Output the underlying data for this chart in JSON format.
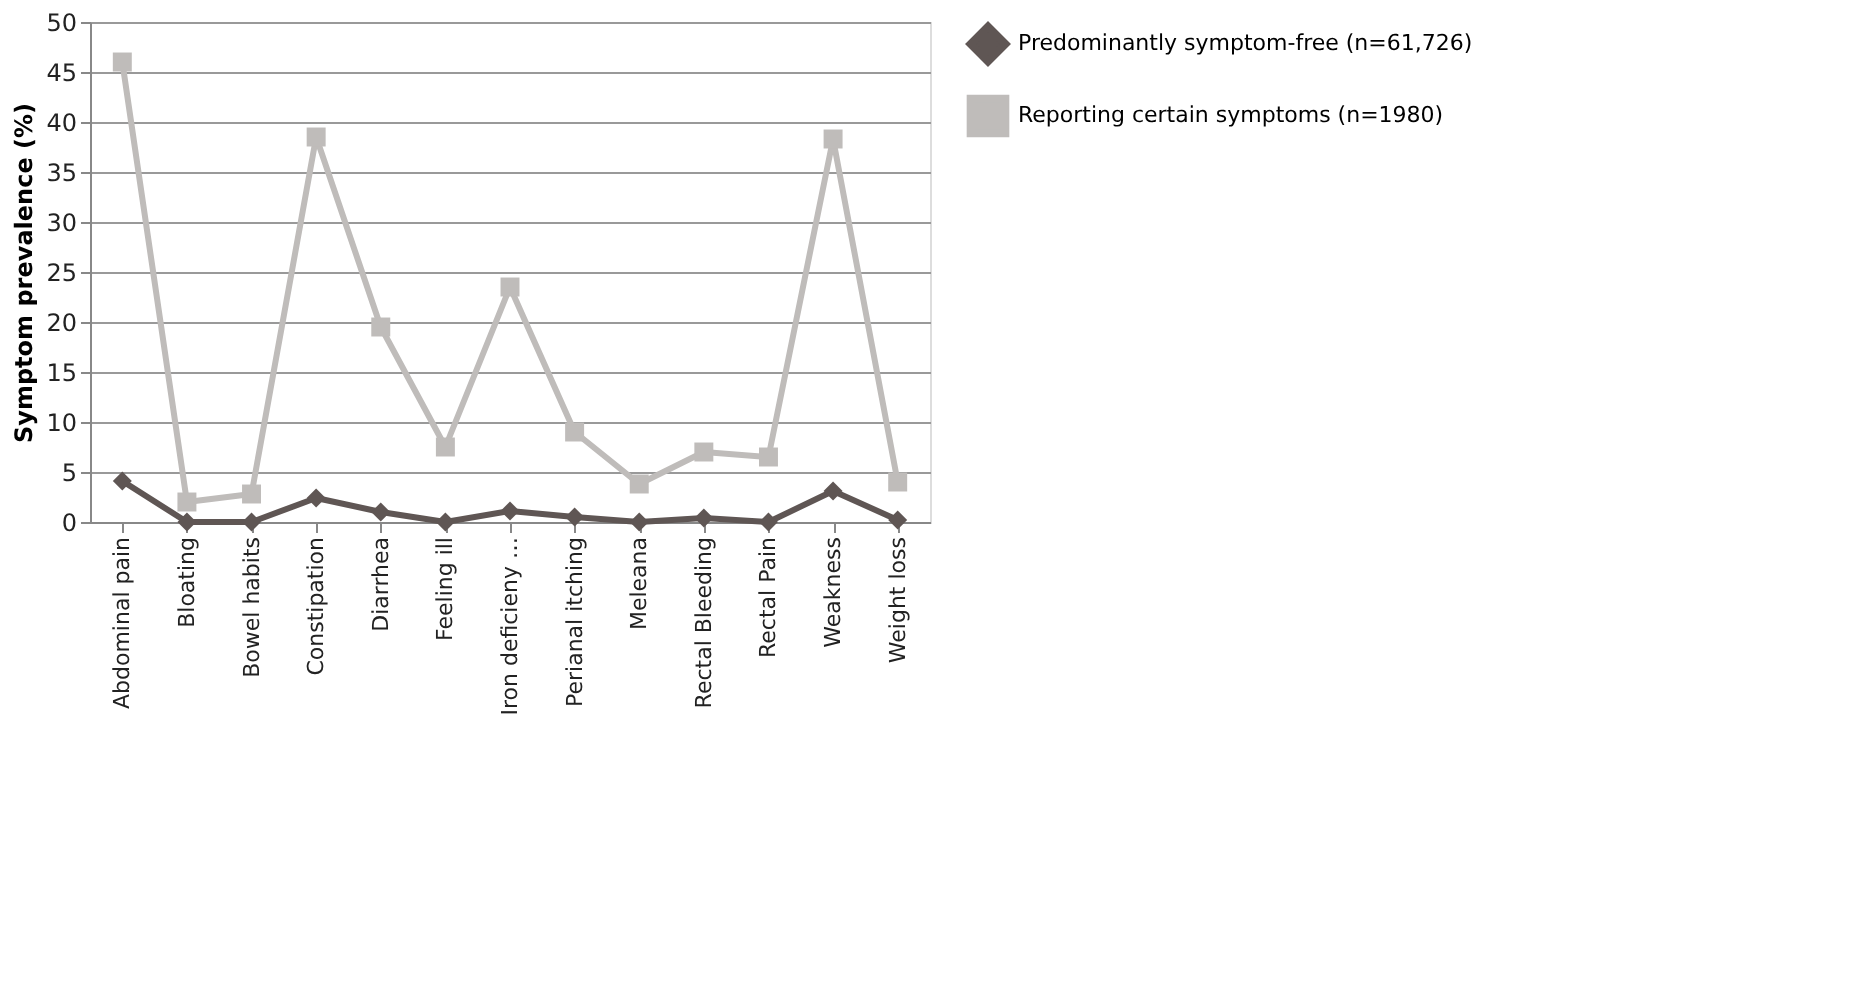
{
  "chart_data": {
    "type": "line",
    "ylabel": "Symptom prevalence (%)",
    "categories": [
      "Abdominal pain",
      "Bloating",
      "Bowel habits",
      "Constipation",
      "Diarrhea",
      "Feeling ill",
      "Iron deficieny …",
      "Perianal itching",
      "Meleana",
      "Rectal Bleeding",
      "Rectal Pain",
      "Weakness",
      "Weight loss"
    ],
    "series": [
      {
        "name": "Predominantly symptom-free (n=61,726)",
        "color": "#5f5654",
        "marker": "diamond",
        "values": [
          4.1,
          0,
          0,
          2.4,
          1,
          0,
          1.1,
          0.5,
          0,
          0.4,
          0,
          3.1,
          0.2
        ]
      },
      {
        "name": "Reporting certain symptoms (n=1980)",
        "color": "#bfbcba",
        "marker": "square",
        "values": [
          46,
          2,
          2.8,
          38.5,
          19.5,
          7.5,
          23.5,
          9,
          3.8,
          7,
          6.5,
          38.3,
          4
        ]
      }
    ],
    "ylim": [
      0,
      50
    ],
    "yticks": [
      0,
      5,
      10,
      15,
      20,
      25,
      30,
      35,
      40,
      45,
      50
    ],
    "grid": "y",
    "legend": "right",
    "line_style": "solid"
  }
}
